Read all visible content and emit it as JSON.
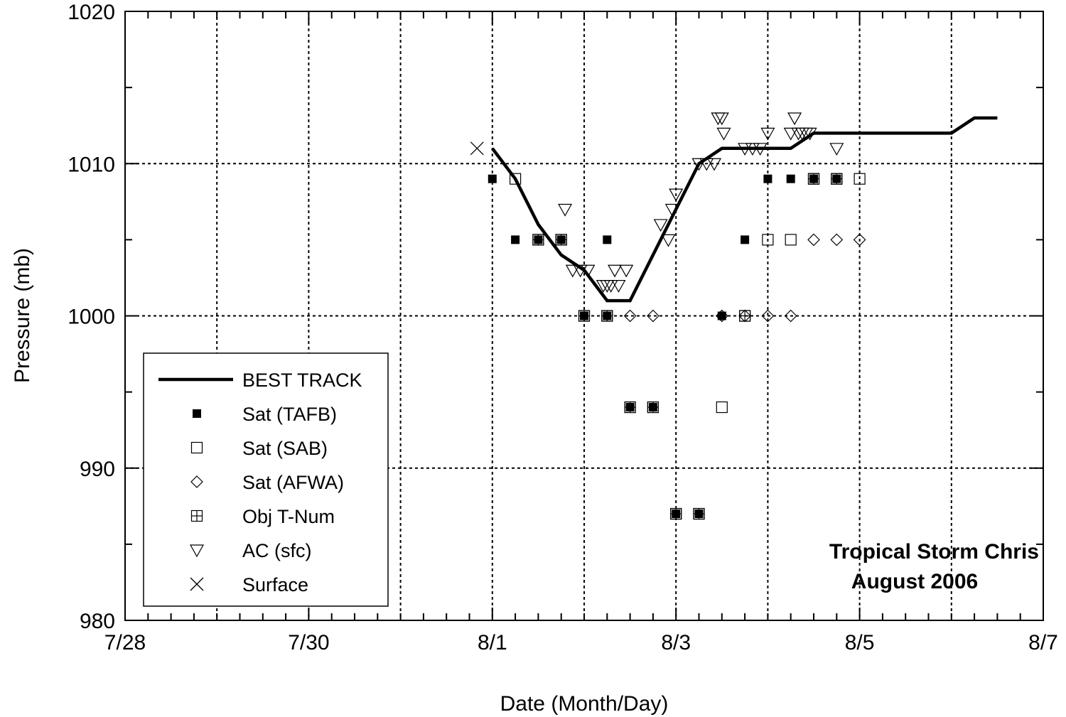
{
  "chart_data": {
    "type": "scatter",
    "title": "Tropical Storm Chris",
    "subtitle": "August 2006",
    "xlabel": "Date (Month/Day)",
    "ylabel": "Pressure (mb)",
    "xlim": [
      "2006-07-28",
      "2006-08-07"
    ],
    "ylim": [
      980,
      1020
    ],
    "x_ticks": [
      "7/28",
      "7/30",
      "8/1",
      "8/3",
      "8/5",
      "8/7"
    ],
    "y_ticks": [
      "980",
      "990",
      "1000",
      "1010",
      "1020"
    ],
    "grid": true,
    "legend_position": "bottom-left",
    "series": [
      {
        "name": "BEST TRACK",
        "marker": "line",
        "points": [
          [
            "2006-08-01 00:00",
            1011
          ],
          [
            "2006-08-01 06:00",
            1009
          ],
          [
            "2006-08-01 12:00",
            1006
          ],
          [
            "2006-08-01 18:00",
            1004
          ],
          [
            "2006-08-02 00:00",
            1003
          ],
          [
            "2006-08-02 06:00",
            1001
          ],
          [
            "2006-08-02 12:00",
            1001
          ],
          [
            "2006-08-02 18:00",
            1004
          ],
          [
            "2006-08-03 00:00",
            1007
          ],
          [
            "2006-08-03 06:00",
            1010
          ],
          [
            "2006-08-03 12:00",
            1011
          ],
          [
            "2006-08-03 18:00",
            1011
          ],
          [
            "2006-08-04 00:00",
            1011
          ],
          [
            "2006-08-04 06:00",
            1011
          ],
          [
            "2006-08-04 12:00",
            1012
          ],
          [
            "2006-08-04 18:00",
            1012
          ],
          [
            "2006-08-05 00:00",
            1012
          ],
          [
            "2006-08-05 06:00",
            1012
          ],
          [
            "2006-08-05 12:00",
            1012
          ],
          [
            "2006-08-05 18:00",
            1012
          ],
          [
            "2006-08-06 00:00",
            1012
          ],
          [
            "2006-08-06 06:00",
            1013
          ],
          [
            "2006-08-06 12:00",
            1013
          ]
        ]
      },
      {
        "name": "Sat (TAFB)",
        "marker": "filled-square",
        "points": [
          [
            "2006-08-01 00:00",
            1009
          ],
          [
            "2006-08-01 06:00",
            1005
          ],
          [
            "2006-08-01 12:00",
            1005
          ],
          [
            "2006-08-01 18:00",
            1005
          ],
          [
            "2006-08-02 00:00",
            1000
          ],
          [
            "2006-08-02 06:00",
            1005
          ],
          [
            "2006-08-02 06:00",
            1000
          ],
          [
            "2006-08-02 12:00",
            994
          ],
          [
            "2006-08-02 18:00",
            994
          ],
          [
            "2006-08-03 00:00",
            987
          ],
          [
            "2006-08-03 06:00",
            987
          ],
          [
            "2006-08-03 12:00",
            1000
          ],
          [
            "2006-08-03 18:00",
            1005
          ],
          [
            "2006-08-04 00:00",
            1009
          ],
          [
            "2006-08-04 06:00",
            1009
          ],
          [
            "2006-08-04 12:00",
            1009
          ],
          [
            "2006-08-04 18:00",
            1009
          ]
        ]
      },
      {
        "name": "Sat (SAB)",
        "marker": "open-square",
        "points": [
          [
            "2006-08-01 06:00",
            1009
          ],
          [
            "2006-08-01 12:00",
            1005
          ],
          [
            "2006-08-01 18:00",
            1005
          ],
          [
            "2006-08-02 00:00",
            1000
          ],
          [
            "2006-08-02 06:00",
            1000
          ],
          [
            "2006-08-02 12:00",
            994
          ],
          [
            "2006-08-02 18:00",
            994
          ],
          [
            "2006-08-03 00:00",
            987
          ],
          [
            "2006-08-03 06:00",
            987
          ],
          [
            "2006-08-03 12:00",
            994
          ],
          [
            "2006-08-03 18:00",
            1000
          ],
          [
            "2006-08-04 00:00",
            1005
          ],
          [
            "2006-08-04 06:00",
            1005
          ],
          [
            "2006-08-04 12:00",
            1009
          ],
          [
            "2006-08-04 18:00",
            1009
          ],
          [
            "2006-08-05 00:00",
            1009
          ]
        ]
      },
      {
        "name": "Sat (AFWA)",
        "marker": "open-diamond",
        "points": [
          [
            "2006-08-02 12:00",
            1000
          ],
          [
            "2006-08-02 18:00",
            1000
          ],
          [
            "2006-08-03 12:00",
            1000
          ],
          [
            "2006-08-03 18:00",
            1000
          ],
          [
            "2006-08-04 00:00",
            1000
          ],
          [
            "2006-08-04 06:00",
            1000
          ],
          [
            "2006-08-04 12:00",
            1005
          ],
          [
            "2006-08-04 18:00",
            1005
          ],
          [
            "2006-08-05 00:00",
            1005
          ]
        ]
      },
      {
        "name": "Obj T-Num",
        "marker": "crossed-square",
        "points": [
          [
            "2006-08-01 12:00",
            1005
          ],
          [
            "2006-08-01 18:00",
            1005
          ],
          [
            "2006-08-02 00:00",
            1000
          ],
          [
            "2006-08-02 06:00",
            1000
          ],
          [
            "2006-08-02 12:00",
            994
          ],
          [
            "2006-08-02 18:00",
            994
          ],
          [
            "2006-08-03 00:00",
            987
          ],
          [
            "2006-08-03 06:00",
            987
          ],
          [
            "2006-08-03 18:00",
            1000
          ],
          [
            "2006-08-04 12:00",
            1009
          ],
          [
            "2006-08-04 18:00",
            1009
          ]
        ]
      },
      {
        "name": "AC (sfc)",
        "marker": "open-triangle-down",
        "points": [
          [
            "2006-08-01 19:00",
            1007
          ],
          [
            "2006-08-01 21:00",
            1003
          ],
          [
            "2006-08-01 23:00",
            1003
          ],
          [
            "2006-08-02 01:00",
            1003
          ],
          [
            "2006-08-02 05:00",
            1002
          ],
          [
            "2006-08-02 06:00",
            1002
          ],
          [
            "2006-08-02 07:00",
            1002
          ],
          [
            "2006-08-02 08:00",
            1003
          ],
          [
            "2006-08-02 09:00",
            1002
          ],
          [
            "2006-08-02 11:00",
            1003
          ],
          [
            "2006-08-02 20:00",
            1006
          ],
          [
            "2006-08-02 22:00",
            1005
          ],
          [
            "2006-08-02 23:00",
            1007
          ],
          [
            "2006-08-03 00:00",
            1008
          ],
          [
            "2006-08-03 06:00",
            1010
          ],
          [
            "2006-08-03 08:00",
            1010
          ],
          [
            "2006-08-03 10:00",
            1010
          ],
          [
            "2006-08-03 11:00",
            1013
          ],
          [
            "2006-08-03 12:00",
            1013
          ],
          [
            "2006-08-03 12:30",
            1012
          ],
          [
            "2006-08-03 18:00",
            1011
          ],
          [
            "2006-08-03 20:00",
            1011
          ],
          [
            "2006-08-03 22:00",
            1011
          ],
          [
            "2006-08-04 00:00",
            1012
          ],
          [
            "2006-08-04 06:00",
            1012
          ],
          [
            "2006-08-04 07:00",
            1013
          ],
          [
            "2006-08-04 08:00",
            1012
          ],
          [
            "2006-08-04 09:00",
            1012
          ],
          [
            "2006-08-04 10:00",
            1012
          ],
          [
            "2006-08-04 11:00",
            1012
          ],
          [
            "2006-08-04 18:00",
            1011
          ]
        ]
      },
      {
        "name": "Surface",
        "marker": "x",
        "points": [
          [
            "2006-07-31 20:00",
            1011
          ]
        ]
      }
    ]
  }
}
